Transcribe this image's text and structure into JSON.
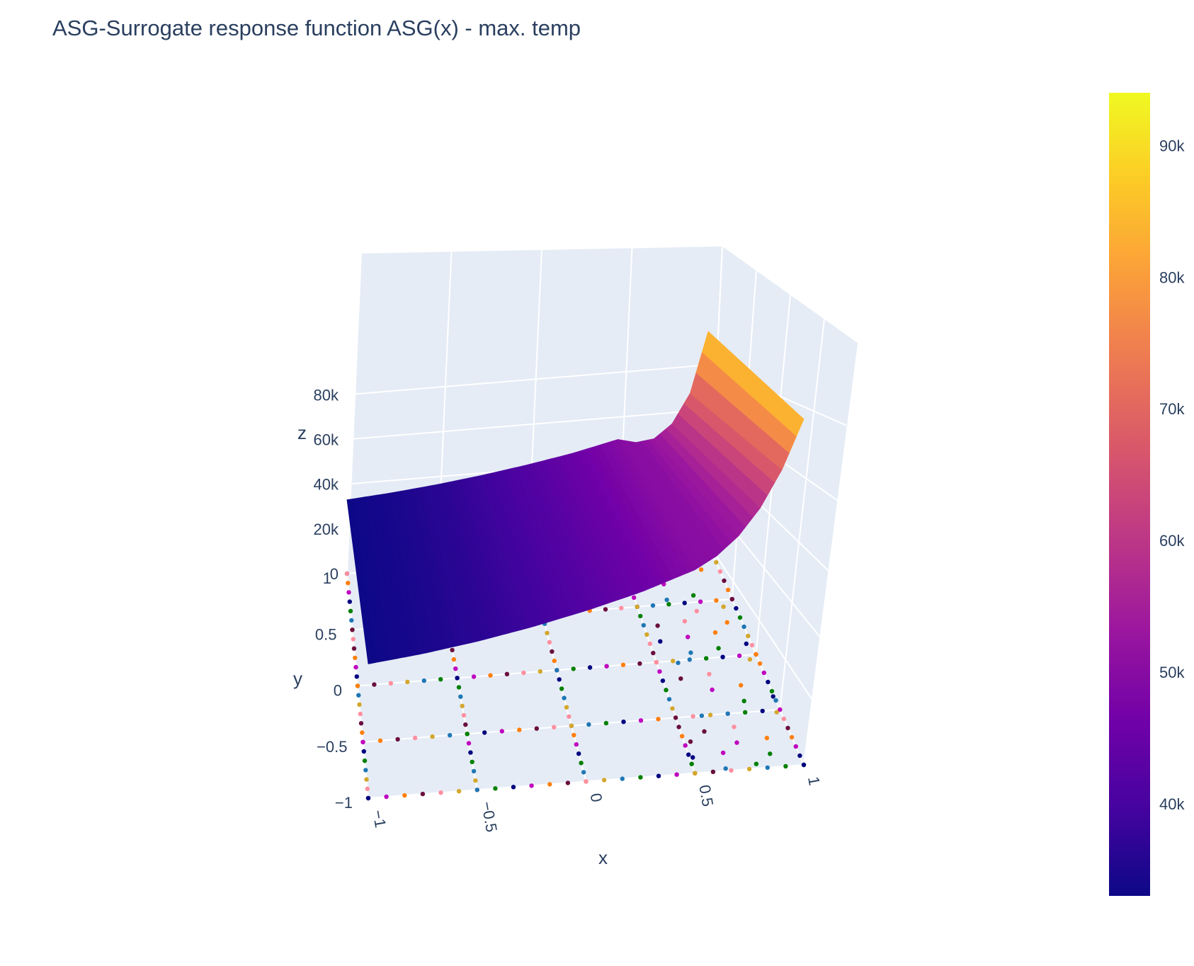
{
  "chart_data": {
    "type": "surface3d",
    "title": "ASG-Surrogate response function ASG(x) - max. temp",
    "xlabel": "x",
    "ylabel": "y",
    "zlabel": "z",
    "x_ticks": [
      "−1",
      "−0.5",
      "0",
      "0.5",
      "1"
    ],
    "y_ticks": [
      "−1",
      "−0.5",
      "0",
      "0.5",
      "1"
    ],
    "z_ticks": [
      "0",
      "20k",
      "40k",
      "60k",
      "80k"
    ],
    "xlim": [
      -1,
      1
    ],
    "ylim": [
      -1,
      1
    ],
    "zlim": [
      0,
      95000
    ],
    "surface": {
      "x": [
        -1,
        -0.75,
        -0.5,
        -0.25,
        0,
        0.25,
        0.5,
        0.6,
        0.7,
        0.8,
        0.9,
        1
      ],
      "z_front_y_min": [
        33000,
        34500,
        36500,
        39000,
        42000,
        45500,
        50000,
        53000,
        57500,
        64000,
        73000,
        85000
      ],
      "z_back_y_max": [
        33000,
        34500,
        36500,
        39000,
        42000,
        45500,
        50000,
        48000,
        49000,
        55000,
        68000,
        95000
      ]
    },
    "colorscale": {
      "name": "Plasma",
      "cmin": 33000,
      "cmax": 94000,
      "ticks": [
        "40k",
        "50k",
        "60k",
        "70k",
        "80k",
        "90k"
      ],
      "tick_values": [
        40000,
        50000,
        60000,
        70000,
        80000,
        90000
      ],
      "colors": [
        "#0d0887",
        "#46039f",
        "#7201a8",
        "#9c179e",
        "#bd3786",
        "#d8576b",
        "#ed7953",
        "#fb9f3a",
        "#fdca26",
        "#f0f921"
      ]
    },
    "scatter_points": {
      "description_colors": [
        "#6a0f3e",
        "#ff8fa0",
        "#d4a72c",
        "#1f77b4",
        "#008000",
        "#000080",
        "#bf00bf",
        "#ff7f0e"
      ],
      "lines_x": [
        -1,
        -0.5,
        0,
        0.5,
        1
      ],
      "lines_y": [
        -1,
        -0.5,
        0,
        0.5,
        1
      ]
    }
  },
  "style": {
    "background": "#ffffff",
    "scene_bg": "#e5ecf6",
    "grid": "#ffffff",
    "text": "#2a3f5f"
  }
}
